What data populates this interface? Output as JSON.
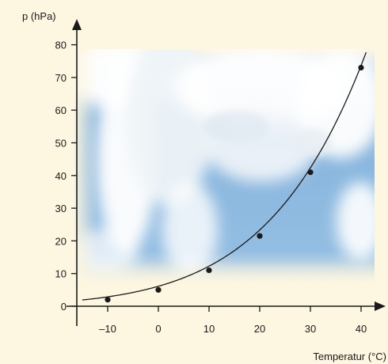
{
  "chart_data": {
    "type": "line",
    "ylabel": "p (hPa)",
    "xlabel": "Temperatur (°C)",
    "x_ticks": [
      "–10",
      "0",
      "10",
      "20",
      "30",
      "40"
    ],
    "y_ticks": [
      "0",
      "10",
      "20",
      "30",
      "40",
      "50",
      "60",
      "70",
      "80"
    ],
    "xlim": [
      -16,
      44
    ],
    "ylim": [
      -2,
      84
    ],
    "grid": false,
    "background": "photo of clouds against blue sky behind plot area",
    "series": [
      {
        "points": [
          {
            "x": -10,
            "y": 2.0
          },
          {
            "x": 0,
            "y": 5.0
          },
          {
            "x": 10,
            "y": 11.0
          },
          {
            "x": 20,
            "y": 21.5
          },
          {
            "x": 30,
            "y": 41.0
          },
          {
            "x": 40,
            "y": 73.0
          }
        ],
        "curve": "smooth exponential (saturation vapour pressure)",
        "curve_range": [
          -15,
          41
        ]
      }
    ]
  },
  "colors": {
    "page_bg": "#fdf6e1",
    "sky": "#86b3dc",
    "cloud": "#ffffff",
    "axis": "#1a1a1a",
    "curve": "#1a1a1a",
    "point": "#1a1a1a"
  }
}
